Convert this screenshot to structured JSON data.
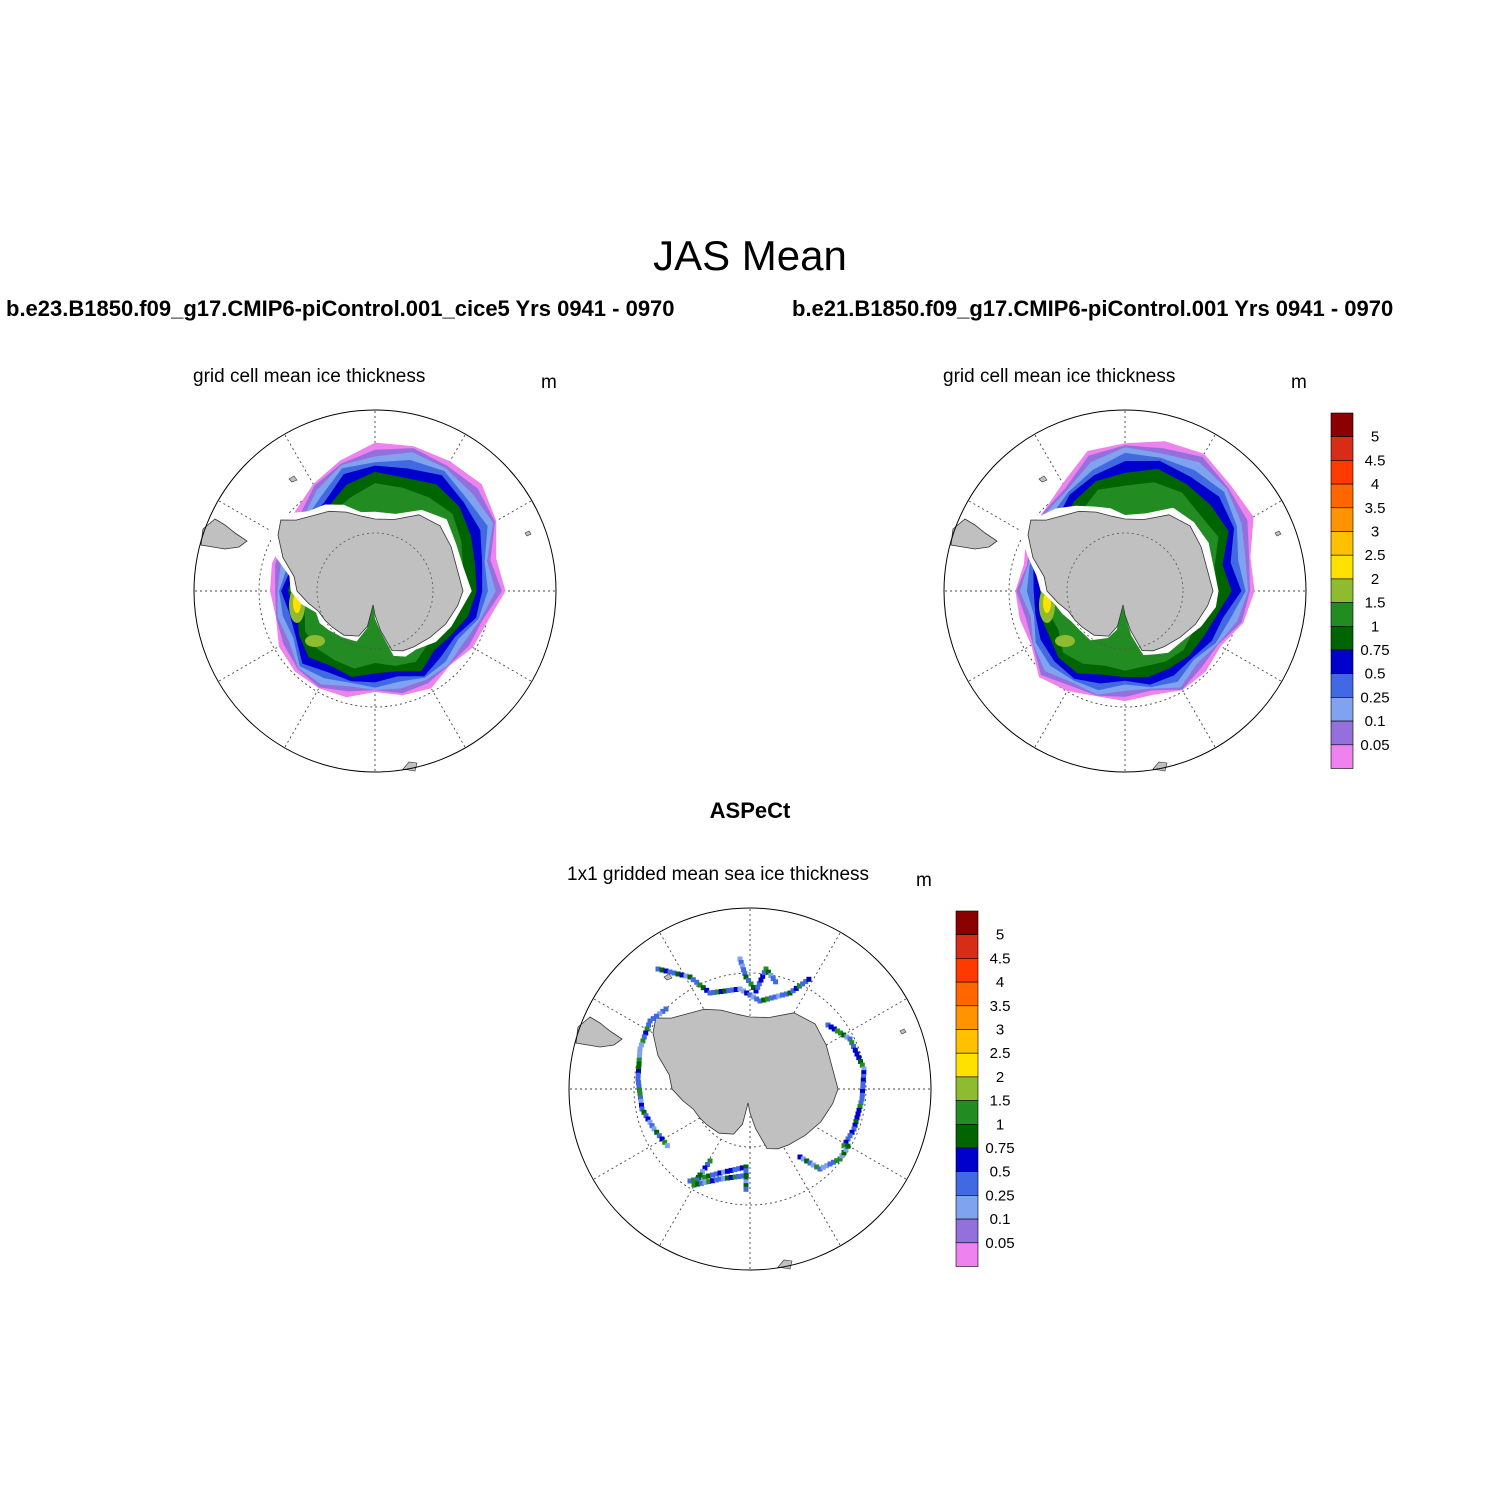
{
  "figure": {
    "title": "JAS Mean",
    "case_left": "b.e23.B1850.f09_g17.CMIP6-piControl.001_cice5  Yrs 0941 - 0970",
    "case_right": "b.e21.B1850.f09_g17.CMIP6-piControl.001  Yrs 0941 - 0970",
    "obs_title": "ASPeCt"
  },
  "panels": [
    {
      "id": "model-left",
      "label": "grid cell mean ice thickness",
      "unit": "m",
      "scale": 1.0
    },
    {
      "id": "model-right",
      "label": "grid cell mean ice thickness",
      "unit": "m",
      "scale": 1.03
    },
    {
      "id": "obs",
      "label": "1x1 gridded mean sea ice thickness",
      "unit": "m"
    }
  ],
  "colorbar": {
    "levels": [
      "5",
      "4.5",
      "4",
      "3.5",
      "3",
      "2.5",
      "2",
      "1.5",
      "1",
      "0.75",
      "0.5",
      "0.25",
      "0.1",
      "0.05"
    ],
    "colors_top_to_bottom": [
      "#8b0000",
      "#d72c16",
      "#ff3a00",
      "#ff6600",
      "#ff9400",
      "#ffc000",
      "#ffe100",
      "#8fbc2f",
      "#228b22",
      "#006400",
      "#0000cd",
      "#4169e1",
      "#7fa3ee",
      "#9370db",
      "#ee82ee"
    ]
  },
  "map_colors": {
    "land": "#c0c0c0",
    "ocean": "#ffffff",
    "ice_bands_outer_to_inner": [
      "#ee82ee",
      "#9370db",
      "#7fa3ee",
      "#4169e1",
      "#0000cd",
      "#006400",
      "#228b22"
    ],
    "thick_ice": [
      "#8fbc2f",
      "#ffe100",
      "#ffc000",
      "#ff9400"
    ]
  }
}
